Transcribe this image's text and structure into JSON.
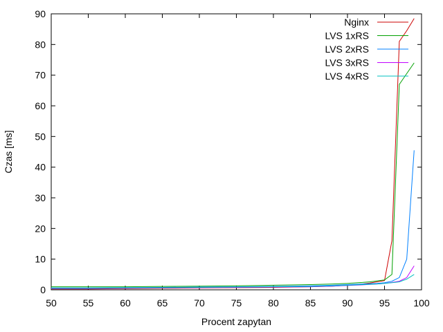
{
  "chart_data": {
    "type": "line",
    "title": "",
    "xlabel": "Procent zapytan",
    "ylabel": "Czas [ms]",
    "xlim": [
      50,
      100
    ],
    "ylim": [
      0,
      90
    ],
    "xticks": [
      50,
      55,
      60,
      65,
      70,
      75,
      80,
      85,
      90,
      95,
      100
    ],
    "yticks": [
      0,
      10,
      20,
      30,
      40,
      50,
      60,
      70,
      80,
      90
    ],
    "grid": false,
    "legend_position": "top-right",
    "series": [
      {
        "name": "Nginx",
        "color": "#cc0000",
        "points": [
          [
            50,
            0.3
          ],
          [
            55,
            0.3
          ],
          [
            60,
            0.4
          ],
          [
            65,
            0.5
          ],
          [
            70,
            0.6
          ],
          [
            75,
            0.7
          ],
          [
            80,
            0.8
          ],
          [
            85,
            1.0
          ],
          [
            88,
            1.2
          ],
          [
            90,
            1.5
          ],
          [
            92,
            1.9
          ],
          [
            93,
            2.2
          ],
          [
            94,
            2.6
          ],
          [
            95,
            3.0
          ],
          [
            96,
            16.0
          ],
          [
            97,
            81.0
          ],
          [
            98,
            84.5
          ],
          [
            99,
            88.5
          ]
        ]
      },
      {
        "name": "LVS 1xRS",
        "color": "#00a000",
        "points": [
          [
            50,
            1.0
          ],
          [
            55,
            1.0
          ],
          [
            60,
            1.0
          ],
          [
            65,
            1.1
          ],
          [
            70,
            1.2
          ],
          [
            75,
            1.3
          ],
          [
            80,
            1.5
          ],
          [
            85,
            1.7
          ],
          [
            88,
            1.9
          ],
          [
            90,
            2.1
          ],
          [
            92,
            2.4
          ],
          [
            93,
            2.6
          ],
          [
            94,
            2.9
          ],
          [
            95,
            3.2
          ],
          [
            96,
            5.0
          ],
          [
            97,
            67.0
          ],
          [
            98,
            70.5
          ],
          [
            99,
            74.0
          ]
        ]
      },
      {
        "name": "LVS 2xRS",
        "color": "#0080ff",
        "points": [
          [
            50,
            0.6
          ],
          [
            55,
            0.6
          ],
          [
            60,
            0.7
          ],
          [
            65,
            0.8
          ],
          [
            70,
            0.9
          ],
          [
            75,
            1.0
          ],
          [
            80,
            1.1
          ],
          [
            85,
            1.3
          ],
          [
            88,
            1.5
          ],
          [
            90,
            1.7
          ],
          [
            92,
            1.9
          ],
          [
            94,
            2.1
          ],
          [
            95,
            2.3
          ],
          [
            96,
            2.8
          ],
          [
            97,
            4.0
          ],
          [
            98,
            10.0
          ],
          [
            99,
            45.5
          ]
        ]
      },
      {
        "name": "LVS 3xRS",
        "color": "#c000ff",
        "points": [
          [
            50,
            0.4
          ],
          [
            55,
            0.4
          ],
          [
            60,
            0.5
          ],
          [
            65,
            0.6
          ],
          [
            70,
            0.7
          ],
          [
            75,
            0.8
          ],
          [
            80,
            0.9
          ],
          [
            85,
            1.0
          ],
          [
            88,
            1.2
          ],
          [
            90,
            1.4
          ],
          [
            92,
            1.6
          ],
          [
            94,
            1.9
          ],
          [
            95,
            2.1
          ],
          [
            96,
            2.4
          ],
          [
            97,
            2.8
          ],
          [
            98,
            4.0
          ],
          [
            99,
            7.8
          ]
        ]
      },
      {
        "name": "LVS 4xRS",
        "color": "#00c0c0",
        "points": [
          [
            50,
            0.5
          ],
          [
            55,
            0.5
          ],
          [
            60,
            0.6
          ],
          [
            65,
            0.7
          ],
          [
            70,
            0.8
          ],
          [
            75,
            0.9
          ],
          [
            80,
            1.0
          ],
          [
            85,
            1.1
          ],
          [
            88,
            1.3
          ],
          [
            90,
            1.5
          ],
          [
            92,
            1.7
          ],
          [
            94,
            1.9
          ],
          [
            95,
            2.1
          ],
          [
            96,
            2.3
          ],
          [
            97,
            2.6
          ],
          [
            98,
            3.5
          ],
          [
            99,
            5.0
          ]
        ]
      }
    ]
  }
}
